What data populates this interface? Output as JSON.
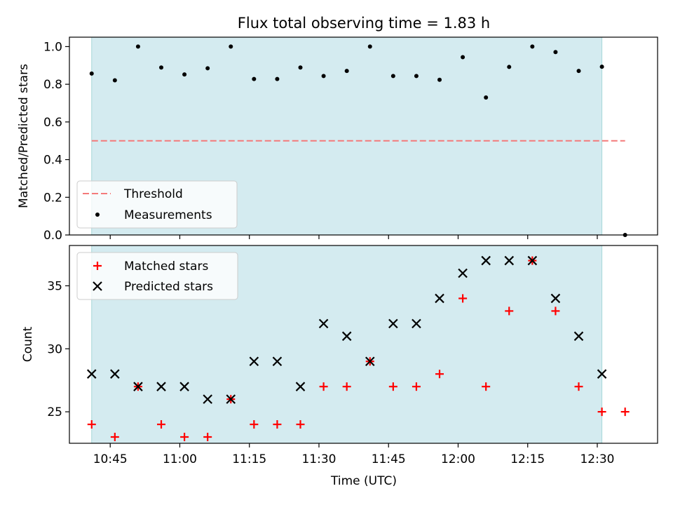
{
  "chart_data": [
    {
      "type": "scatter",
      "title": "Flux total observing time = 1.83 h",
      "ylabel": "Matched/Predicted stars",
      "xlabel": "",
      "ylim": [
        0,
        1.05
      ],
      "yticks": [
        "0.0",
        "0.2",
        "0.4",
        "0.6",
        "0.8",
        "1.0"
      ],
      "observing_window": [
        "10:41",
        "12:31"
      ],
      "legend": {
        "placement": "lower-left"
      },
      "threshold": {
        "name": "Threshold",
        "value": 0.5,
        "x_range": [
          "10:41",
          "12:36"
        ],
        "color": "#f47a7a",
        "style": "dashed"
      },
      "series": [
        {
          "name": "Measurements",
          "color": "#000000",
          "x": [
            "10:41",
            "10:46",
            "10:51",
            "10:56",
            "11:01",
            "11:06",
            "11:11",
            "11:16",
            "11:21",
            "11:26",
            "11:31",
            "11:36",
            "11:41",
            "11:46",
            "11:51",
            "11:56",
            "12:01",
            "12:06",
            "12:11",
            "12:16",
            "12:21",
            "12:26",
            "12:31",
            "12:36"
          ],
          "y": [
            0.857,
            0.821,
            1.0,
            0.889,
            0.852,
            0.885,
            1.0,
            0.828,
            0.828,
            0.889,
            0.844,
            0.871,
            1.0,
            0.844,
            0.844,
            0.824,
            0.944,
            0.73,
            0.892,
            1.0,
            0.971,
            0.871,
            0.893,
            0.0
          ]
        }
      ]
    },
    {
      "type": "scatter",
      "title": "",
      "ylabel": "Count",
      "xlabel": "Time (UTC)",
      "ylim": [
        22.5,
        38.2
      ],
      "yticks": [
        "25",
        "30",
        "35"
      ],
      "xticks": [
        "10:45",
        "11:00",
        "11:15",
        "11:30",
        "11:45",
        "12:00",
        "12:15",
        "12:30"
      ],
      "observing_window": [
        "10:41",
        "12:31"
      ],
      "legend": {
        "placement": "upper-left"
      },
      "series": [
        {
          "name": "Matched stars",
          "marker": "plus",
          "color": "#ff0000",
          "x": [
            "10:41",
            "10:46",
            "10:51",
            "10:56",
            "11:01",
            "11:06",
            "11:11",
            "11:16",
            "11:21",
            "11:26",
            "11:31",
            "11:36",
            "11:41",
            "11:46",
            "11:51",
            "11:56",
            "12:01",
            "12:06",
            "12:11",
            "12:16",
            "12:21",
            "12:26",
            "12:31",
            "12:36"
          ],
          "y": [
            24,
            23,
            27,
            24,
            23,
            23,
            26,
            24,
            24,
            24,
            27,
            27,
            29,
            27,
            27,
            28,
            34,
            27,
            33,
            37,
            33,
            27,
            25,
            25
          ]
        },
        {
          "name": "Predicted stars",
          "marker": "x",
          "color": "#000000",
          "x": [
            "10:41",
            "10:46",
            "10:51",
            "10:56",
            "11:01",
            "11:06",
            "11:11",
            "11:16",
            "11:21",
            "11:26",
            "11:31",
            "11:36",
            "11:41",
            "11:46",
            "11:51",
            "11:56",
            "12:01",
            "12:06",
            "12:11",
            "12:16",
            "12:21",
            "12:26",
            "12:31"
          ],
          "y": [
            28,
            28,
            27,
            27,
            27,
            26,
            26,
            29,
            29,
            27,
            32,
            31,
            29,
            32,
            32,
            34,
            36,
            37,
            37,
            37,
            34,
            31,
            28
          ]
        }
      ]
    }
  ],
  "colors": {
    "window_fill": "#d4ebf0",
    "window_edge": "#a8d8d8"
  }
}
